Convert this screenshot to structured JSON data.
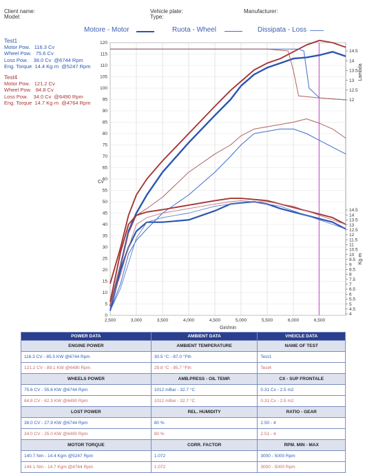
{
  "header": {
    "client_name": "Client name:",
    "model": "Model:",
    "vehicle_plate": "Vehicle plate:",
    "type": "Type:",
    "manufacturer": "Manufacturer:"
  },
  "legend": {
    "motor": "Motore - Motor",
    "wheel": "Ruota - Wheel",
    "loss": "Dissipata - Loss"
  },
  "tests": [
    {
      "name": "Test1",
      "color": "#2a55b0",
      "lines": [
        "Motor Pow.   116.3 Cv",
        "Wheel Pow.   75.6 Cv",
        "Loss Pow.    38.0 Cv  @6744 Rpm",
        "Eng. Torque  14.4 Kg·m  @5247 Rpm"
      ]
    },
    {
      "name": "Test4",
      "color": "#a53535",
      "lines": [
        "Motor Pow.   121.2 Cv",
        "Wheel Pow.   84.8 Cv",
        "Loss Pow.    34.0 Cv  @6490 Rpm",
        "Eng. Torque  14.7 Kg·m  @4764 Rpm"
      ]
    }
  ],
  "chart_data": {
    "type": "line",
    "xlabel": "Giri/min",
    "ylabel_left": "Cv",
    "ylabel_right_top": "Lambda",
    "ylabel_right_bottom": "Kg·m",
    "xlim": [
      2500,
      7000
    ],
    "ylim": [
      0,
      120
    ],
    "x_ticks": [
      "2,500",
      "3,000",
      "3,500",
      "4,000",
      "4,500",
      "5,000",
      "5,500",
      "6,000",
      "6,500"
    ],
    "y_ticks": [
      "0",
      "5",
      "10",
      "15",
      "20",
      "25",
      "30",
      "35",
      "40",
      "45",
      "50",
      "55",
      "60",
      "65",
      "70",
      "75",
      "80",
      "85",
      "90",
      "95",
      "100",
      "105",
      "110",
      "115",
      "120"
    ],
    "lambda_ticks": [
      "12",
      "12.5",
      "13",
      "13.5",
      "14",
      "14.5"
    ],
    "torque_ticks": [
      "4",
      "4.5",
      "5",
      "5.5",
      "6",
      "6.5",
      "7",
      "7.5",
      "8",
      "8.5",
      "9",
      "9.5",
      "10",
      "10.5",
      "11",
      "11.5",
      "12",
      "12.5",
      "13",
      "13.5",
      "14",
      "14.5"
    ],
    "marker_rpm": 6490,
    "rpm": [
      2500,
      2700,
      2850,
      3000,
      3200,
      3500,
      4000,
      4500,
      4800,
      5000,
      5250,
      5500,
      5750,
      6000,
      6250,
      6500,
      6750,
      7000
    ],
    "series": [
      {
        "test": "Test1",
        "kind": "motor",
        "color": "#2a55b0",
        "width": 2.4,
        "values": [
          4,
          22,
          37,
          45,
          53,
          63,
          76,
          88,
          95,
          101,
          106,
          109,
          111,
          113,
          113.5,
          114.5,
          116,
          114
        ]
      },
      {
        "test": "Test4",
        "kind": "motor",
        "color": "#a53535",
        "width": 1.9,
        "values": [
          14,
          30,
          44,
          53,
          60,
          68,
          80,
          92,
          99,
          103,
          108,
          111,
          113,
          116,
          119,
          121,
          120,
          118
        ]
      },
      {
        "test": "Test1",
        "kind": "wheel",
        "color": "#3f6cc8",
        "width": 1.0,
        "values": [
          2,
          14,
          27,
          33,
          38,
          45,
          53,
          63,
          70,
          75,
          80,
          81,
          82,
          82,
          80,
          77,
          74,
          71
        ]
      },
      {
        "test": "Test4",
        "kind": "wheel",
        "color": "#b06060",
        "width": 1.0,
        "values": [
          5,
          22,
          36,
          44,
          47,
          52,
          63,
          71,
          75,
          79,
          82,
          83,
          84,
          85,
          86.5,
          84.5,
          82,
          78
        ]
      },
      {
        "test": "Test1",
        "kind": "torque",
        "color": "#2a55b0",
        "width": 2.2,
        "values": [
          2,
          20,
          30,
          37,
          41,
          41,
          42,
          46,
          49,
          49.5,
          50,
          49,
          47,
          45.5,
          44,
          42.5,
          41,
          38
        ]
      },
      {
        "test": "Test4",
        "kind": "torque",
        "color": "#a53535",
        "width": 1.9,
        "values": [
          6,
          28,
          40,
          44,
          45.5,
          46.5,
          48.5,
          50.5,
          51.5,
          51.5,
          51,
          50.5,
          49,
          47.5,
          46,
          44.5,
          43,
          40
        ]
      },
      {
        "test": "Test1",
        "kind": "loss",
        "color": "#5a7fd0",
        "width": 0.9,
        "values": [
          2,
          12,
          23,
          34,
          41,
          43,
          45,
          48,
          49,
          49.5,
          50,
          49,
          48,
          46,
          44,
          42,
          40,
          38
        ]
      },
      {
        "test": "Test4",
        "kind": "loss",
        "color": "#c07878",
        "width": 0.9,
        "values": [
          4,
          18,
          30,
          40,
          43,
          45,
          47,
          49,
          50,
          50.5,
          50,
          50,
          49,
          48,
          46,
          44,
          42,
          40
        ]
      }
    ],
    "lambda_series": [
      {
        "test": "Test1",
        "color": "#3f6cc8",
        "rpm": [
          2500,
          3000,
          4000,
          5000,
          5500,
          6000,
          6100,
          6200,
          6300,
          6500,
          6750,
          7000
        ],
        "values": [
          14.6,
          14.6,
          14.6,
          14.6,
          14.6,
          14.6,
          14.6,
          14.5,
          12.6,
          12.1,
          12.05,
          12.0
        ]
      },
      {
        "test": "Test4",
        "color": "#b06060",
        "rpm": [
          2500,
          3000,
          4000,
          5000,
          5500,
          5900,
          6000,
          6100,
          6300,
          6500,
          6750,
          7000
        ],
        "values": [
          14.6,
          14.6,
          14.6,
          14.6,
          14.6,
          14.5,
          13.5,
          12.2,
          12.15,
          12.1,
          12.05,
          12.0
        ]
      }
    ]
  },
  "table": {
    "col_headers": [
      "POWER DATA",
      "AMBIENT DATA",
      "VHEICLE DATA"
    ],
    "sections": [
      {
        "labels": [
          "ENGINE POWER",
          "AMBIENT TEMPERATURE",
          "NAME OF TEST"
        ],
        "row1": [
          "116.3 CV - 85.5 KW  @6744 Rpm",
          "30.5 °C - 87.0 °Fth",
          "Test1"
        ],
        "row2": [
          "121.2 CV - 89.1 KW  @6490 Rpm",
          "29.8 °C - 85.7 °Fth",
          "Test4"
        ]
      },
      {
        "labels": [
          "WHEELS POWER",
          "AMB.PRESS - OIL TEMP.",
          "CX - SUP FRONTALE"
        ],
        "row1": [
          "75.6 CV - 55.6 KW  @6744 Rpm",
          "1012 mBar - 32.7 °C",
          "0.31 Cx - 2.5 m2"
        ],
        "row2": [
          "84.8 CV - 62.3 KW  @6490 Rpm",
          "1012 mBar - 32.7 °C",
          "0.31 Cx - 2.5 m2"
        ]
      },
      {
        "labels": [
          "LOST POWER",
          "REL. HUMIDITY",
          "RATIO - GEAR"
        ],
        "row1": [
          "38.0 CV - 27.9 KW  @6744 Rpm",
          "80 %",
          "2.50 - 4"
        ],
        "row2": [
          "34.0 CV - 25.0 KW  @6490 Rpm",
          "80 %",
          "2.51 - 4"
        ]
      },
      {
        "labels": [
          "MOTOR TORQUE",
          "CORR. FACTOR",
          "RPM. MIN - MAX"
        ],
        "row1": [
          "140.7 Nm - 14.4 Kgm  @5247 Rpm",
          "1.072",
          "3000 - 5000 Rpm"
        ],
        "row2": [
          "144.1 Nm - 14.7 Kgm  @4764 Rpm",
          "1.072",
          "3000 - 5000 Rpm"
        ]
      }
    ]
  }
}
